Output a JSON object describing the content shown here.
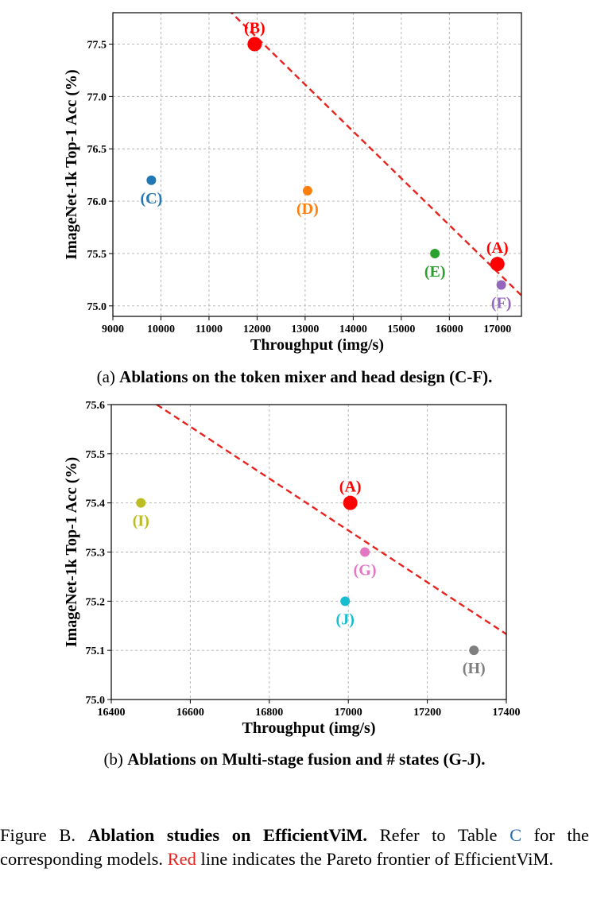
{
  "chart_data": [
    {
      "type": "scatter",
      "xlabel": "Throughput (img/s)",
      "ylabel": "ImageNet-1k Top-1 Acc (%)",
      "xlim": [
        9000,
        17500
      ],
      "ylim": [
        74.9,
        77.8
      ],
      "xticks": [
        "9000",
        "10000",
        "11000",
        "12000",
        "13000",
        "14000",
        "15000",
        "16000",
        "17000"
      ],
      "yticks": [
        "75.0",
        "75.5",
        "76.0",
        "76.5",
        "77.0",
        "77.5"
      ],
      "grid": true,
      "points": [
        {
          "label": "(B)",
          "x": 11950,
          "y": 77.5,
          "color": "#ff0000",
          "size": "large",
          "label_pos": "above"
        },
        {
          "label": "(C)",
          "x": 9800,
          "y": 76.2,
          "color": "#1f77b4",
          "size": "small",
          "label_pos": "below"
        },
        {
          "label": "(D)",
          "x": 13050,
          "y": 76.1,
          "color": "#ff7f0e",
          "size": "small",
          "label_pos": "below"
        },
        {
          "label": "(E)",
          "x": 15700,
          "y": 75.5,
          "color": "#2ca02c",
          "size": "small",
          "label_pos": "below"
        },
        {
          "label": "(A)",
          "x": 17000,
          "y": 75.4,
          "color": "#ff0000",
          "size": "large",
          "label_pos": "above"
        },
        {
          "label": "(F)",
          "x": 17080,
          "y": 75.2,
          "color": "#9467bd",
          "size": "small",
          "label_pos": "below"
        }
      ],
      "pareto_line": {
        "x": [
          11400,
          17500
        ],
        "y": [
          77.83,
          75.1
        ],
        "color": "#e8231e"
      },
      "caption_prefix": "(a)",
      "caption_bold": "Ablations on the token mixer and head design (C-F)."
    },
    {
      "type": "scatter",
      "xlabel": "Throughput (img/s)",
      "ylabel": "ImageNet-1k Top-1 Acc (%)",
      "xlim": [
        16400,
        17400
      ],
      "ylim": [
        75.0,
        75.6
      ],
      "xticks": [
        "16400",
        "16600",
        "16800",
        "17000",
        "17200",
        "17400"
      ],
      "yticks": [
        "75.0",
        "75.1",
        "75.2",
        "75.3",
        "75.4",
        "75.5",
        "75.6"
      ],
      "grid": true,
      "points": [
        {
          "label": "(I)",
          "x": 16475,
          "y": 75.4,
          "color": "#bcbd22",
          "size": "small",
          "label_pos": "below"
        },
        {
          "label": "(A)",
          "x": 17005,
          "y": 75.4,
          "color": "#ff0000",
          "size": "large",
          "label_pos": "above"
        },
        {
          "label": "(G)",
          "x": 17042,
          "y": 75.3,
          "color": "#e377c2",
          "size": "small",
          "label_pos": "below"
        },
        {
          "label": "(J)",
          "x": 16992,
          "y": 75.2,
          "color": "#17becf",
          "size": "small",
          "label_pos": "below"
        },
        {
          "label": "(H)",
          "x": 17318,
          "y": 75.1,
          "color": "#7f7f7f",
          "size": "small",
          "label_pos": "below"
        }
      ],
      "pareto_line": {
        "x": [
          16515,
          17400
        ],
        "y": [
          75.6,
          75.133
        ],
        "color": "#e8231e"
      },
      "caption_prefix": "(b)",
      "caption_bold": "Ablations on Multi-stage fusion and # states (G-J)."
    }
  ],
  "figure_caption": {
    "prefix": "Figure B.",
    "bold": "Ablation studies on EfficientViM.",
    "text1": "Refer to Table",
    "ref": "C",
    "text2": "for the corresponding models.",
    "red_word": "Red",
    "text3": "line indicates the Pareto frontier of EfficientViM."
  }
}
